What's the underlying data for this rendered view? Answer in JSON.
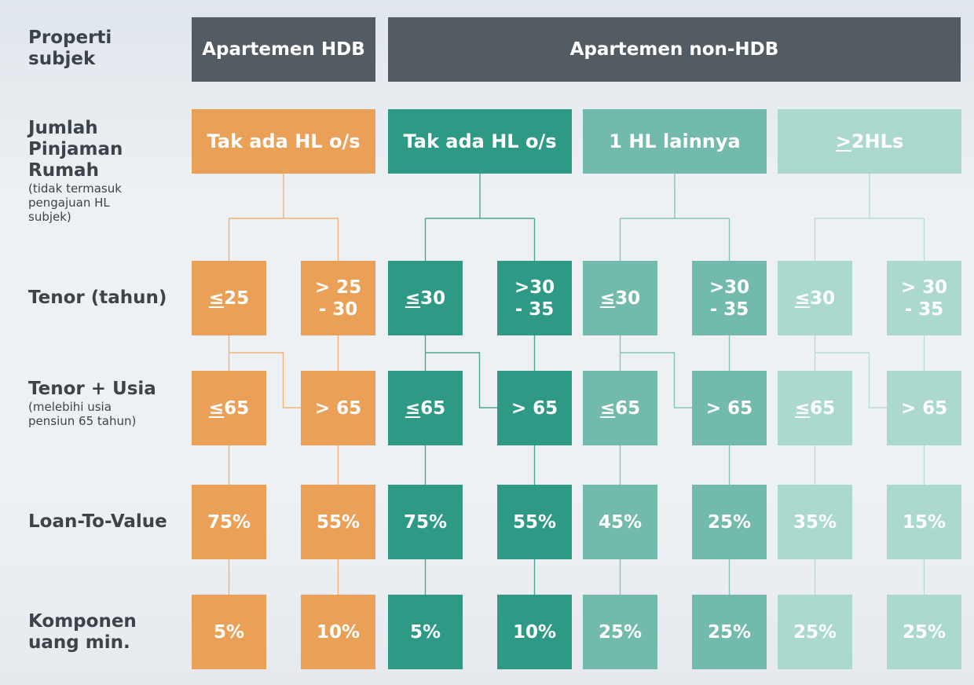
{
  "row_labels": {
    "properti": "Properti\nsubjek",
    "jumlah": "Jumlah\nPinjaman\nRumah",
    "jumlah_sub": "(tidak termasuk\npengajuan HL\nsubjek)",
    "tenor": "Tenor (tahun)",
    "tenor_usia": "Tenor + Usia",
    "tenor_usia_sub": "(melebihi usia\npensiun 65 tahun)",
    "ltv": "Loan-To-Value",
    "komponen": "Komponen\nuang min."
  },
  "headers": {
    "hdb": "Apartemen HDB",
    "non_hdb": "Apartemen non-HDB"
  },
  "colors": {
    "orange": "#eba057",
    "teal_dark": "#2e9a85",
    "teal_mid": "#72baab",
    "teal_light": "#acd9cf",
    "header": "#525c62",
    "label_text": "#3d4449"
  },
  "groups": [
    {
      "category": "Tak ada HL o/s",
      "cat_prefix": "",
      "color": "orange",
      "tenor": [
        {
          "sym": "≤",
          "text": " 25"
        },
        {
          "sym": "",
          "text": "> 25\n- 30"
        }
      ],
      "usia": [
        {
          "sym": "≤",
          "text": " 65"
        },
        {
          "sym": "",
          "text": "> 65"
        }
      ],
      "ltv": [
        "75%",
        "55%"
      ],
      "cash": [
        "5%",
        "10%"
      ]
    },
    {
      "category": "Tak ada HL o/s",
      "cat_prefix": "",
      "color": "teal_dark",
      "tenor": [
        {
          "sym": "≤",
          "text": " 30"
        },
        {
          "sym": "",
          "text": ">30\n- 35"
        }
      ],
      "usia": [
        {
          "sym": "≤",
          "text": " 65"
        },
        {
          "sym": "",
          "text": "> 65"
        }
      ],
      "ltv": [
        "75%",
        "55%"
      ],
      "cash": [
        "5%",
        "10%"
      ]
    },
    {
      "category": "1 HL lainnya",
      "cat_prefix": "",
      "color": "teal_mid",
      "tenor": [
        {
          "sym": "≤",
          "text": "30"
        },
        {
          "sym": "",
          "text": ">30\n- 35"
        }
      ],
      "usia": [
        {
          "sym": "≤",
          "text": "65"
        },
        {
          "sym": "",
          "text": "> 65"
        }
      ],
      "ltv": [
        "45%",
        "25%"
      ],
      "cash": [
        "25%",
        "25%"
      ]
    },
    {
      "category": " 2HLs",
      "cat_prefix": ">",
      "color": "teal_light",
      "tenor": [
        {
          "sym": "≤",
          "text": " 30"
        },
        {
          "sym": "",
          "text": "> 30\n- 35"
        }
      ],
      "usia": [
        {
          "sym": "≤",
          "text": " 65"
        },
        {
          "sym": "",
          "text": "> 65"
        }
      ],
      "ltv": [
        "35%",
        "15%"
      ],
      "cash": [
        "25%",
        "25%"
      ]
    }
  ]
}
